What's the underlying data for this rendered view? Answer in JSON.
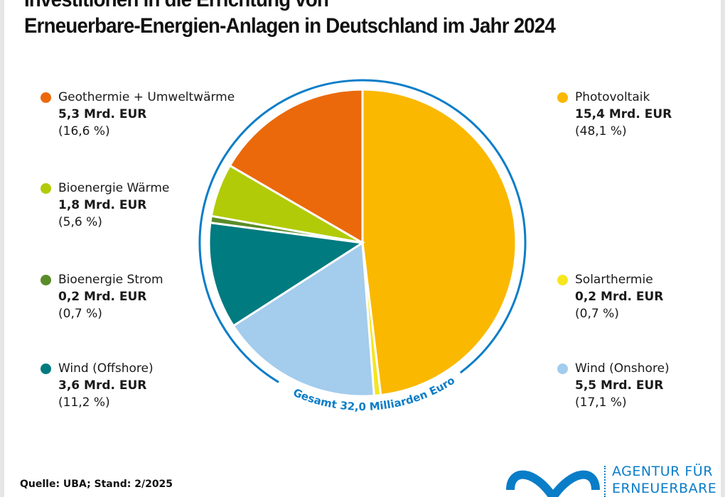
{
  "title_line1": "Investitionen in die Errichtung von",
  "title_line2": "Erneuerbare-Energien-Anlagen in Deutschland im Jahr 2024",
  "source": "Quelle: UBA; Stand: 2/2025",
  "logo": {
    "line1": "AGENTUR FÜR",
    "line2": "ERNEUERBARE",
    "color": "#0a7dc8"
  },
  "chart_data": {
    "type": "pie",
    "title": "Investitionen in die Errichtung von Erneuerbare-Energien-Anlagen in Deutschland im Jahr 2024",
    "total_label": "Gesamt 32,0 Milliarden Euro",
    "unit": "Mrd. EUR",
    "slices": [
      {
        "name": "Photovoltaik",
        "value_label": "15,4 Mrd. EUR",
        "pct_label": "(48,1 %)",
        "value": 15.4,
        "pct": 48.1,
        "color": "#fab800"
      },
      {
        "name": "Solarthermie",
        "value_label": "0,2 Mrd. EUR",
        "pct_label": "(0,7 %)",
        "value": 0.2,
        "pct": 0.7,
        "color": "#f5e61e"
      },
      {
        "name": "Wind (Onshore)",
        "value_label": "5,5 Mrd. EUR",
        "pct_label": "(17,1 %)",
        "value": 5.5,
        "pct": 17.1,
        "color": "#a3cced"
      },
      {
        "name": "Wind (Offshore)",
        "value_label": "3,6 Mrd. EUR",
        "pct_label": "(11,2 %)",
        "value": 3.6,
        "pct": 11.2,
        "color": "#007b80"
      },
      {
        "name": "Bioenergie Strom",
        "value_label": "0,2 Mrd. EUR",
        "pct_label": "(0,7 %)",
        "value": 0.2,
        "pct": 0.7,
        "color": "#5a8c28"
      },
      {
        "name": "Bioenergie Wärme",
        "value_label": "1,8 Mrd. EUR",
        "pct_label": "(5,6 %)",
        "value": 1.8,
        "pct": 5.6,
        "color": "#b1cb08"
      },
      {
        "name": "Geothermie + Umweltwärme",
        "value_label": "5,3 Mrd. EUR",
        "pct_label": "(16,6 %)",
        "value": 5.3,
        "pct": 16.6,
        "color": "#eb690b"
      }
    ],
    "ring_color": "#0a7dc8"
  }
}
